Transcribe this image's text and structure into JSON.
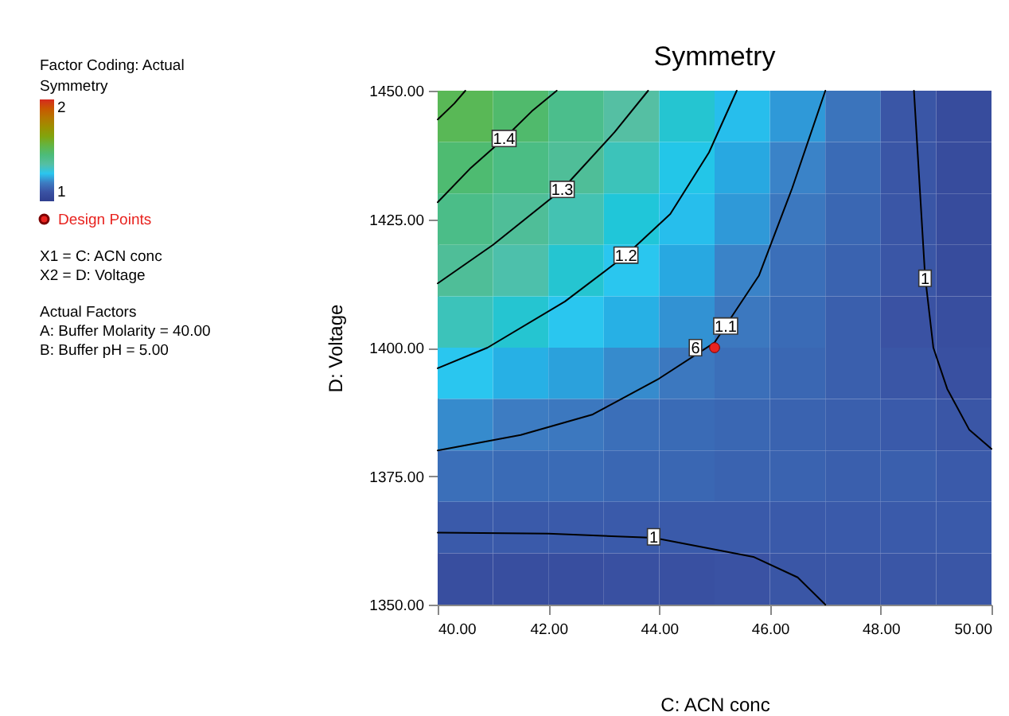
{
  "chart_data": {
    "type": "heatmap",
    "title": "Symmetry",
    "xlabel": "C: ACN conc",
    "ylabel": "D: Voltage",
    "legend_title": "Symmetry",
    "annotations": [
      "Factor Coding: Actual",
      "X1 = C: ACN conc",
      "X2 = D: Voltage",
      "Actual Factors",
      "A: Buffer Molarity = 40.00",
      "B: Buffer pH = 5.00",
      {
        "text": "1.4",
        "x": 41.2,
        "y": 1440.7
      },
      {
        "text": "1.3",
        "x": 42.25,
        "y": 1430.8
      },
      {
        "text": "1.2",
        "x": 43.4,
        "y": 1418
      },
      {
        "text": "1.1",
        "x": 45.2,
        "y": 1404.2
      },
      {
        "text": "6",
        "x": 45,
        "y": 1400
      },
      {
        "text": "1",
        "x": 48.8,
        "y": 1413.5
      },
      {
        "text": "1",
        "x": 43.9,
        "y": 1363.2
      }
    ],
    "xlim": [
      40,
      50
    ],
    "ylim": [
      1350,
      1450
    ],
    "xticks": [
      {
        "value": 40,
        "label": "40.00"
      },
      {
        "value": 42,
        "label": "42.00"
      },
      {
        "value": 44,
        "label": "44.00"
      },
      {
        "value": 46,
        "label": "46.00"
      },
      {
        "value": 48,
        "label": "48.00"
      },
      {
        "value": 50,
        "label": "50.00"
      }
    ],
    "yticks": [
      {
        "value": 1350,
        "label": "1350.00"
      },
      {
        "value": 1375,
        "label": "1375.00"
      },
      {
        "value": 1400,
        "label": "1400.00"
      },
      {
        "value": 1425,
        "label": "1425.00"
      },
      {
        "value": 1450,
        "label": "1450.00"
      }
    ],
    "clim": [
      0.9,
      2
    ],
    "cticks": [
      1,
      2
    ],
    "grid": false,
    "legend": "left",
    "cells": [
      [
        1.47,
        1.43,
        1.36,
        1.3,
        1.24,
        1.19,
        1.14,
        1.08,
        1.01,
        0.97
      ],
      [
        1.42,
        1.38,
        1.33,
        1.27,
        1.21,
        1.16,
        1.11,
        1.06,
        1.01,
        0.97
      ],
      [
        1.37,
        1.33,
        1.28,
        1.23,
        1.19,
        1.14,
        1.09,
        1.05,
        1.01,
        0.97
      ],
      [
        1.33,
        1.29,
        1.24,
        1.2,
        1.16,
        1.11,
        1.07,
        1.04,
        1.01,
        0.97
      ],
      [
        1.27,
        1.24,
        1.2,
        1.17,
        1.13,
        1.09,
        1.06,
        1.03,
        1.0,
        0.98
      ],
      [
        1.2,
        1.17,
        1.15,
        1.12,
        1.09,
        1.07,
        1.05,
        1.03,
        1.01,
        0.99
      ],
      [
        1.12,
        1.1,
        1.09,
        1.07,
        1.06,
        1.05,
        1.04,
        1.03,
        1.02,
        1.01
      ],
      [
        1.07,
        1.06,
        1.06,
        1.05,
        1.05,
        1.04,
        1.04,
        1.03,
        1.03,
        1.02
      ],
      [
        1.02,
        1.02,
        1.02,
        1.02,
        1.02,
        1.02,
        1.02,
        1.02,
        1.02,
        1.02
      ],
      [
        0.98,
        0.98,
        0.98,
        0.99,
        0.99,
        1.0,
        1.01,
        1.01,
        1.01,
        1.01
      ]
    ],
    "series": [
      {
        "type": "line",
        "color": "#000000",
        "x": [
          40,
          40.3,
          40.5
        ],
        "values": [
          1444.4,
          1447.5,
          1450
        ]
      },
      {
        "type": "line",
        "color": "#000000",
        "x": [
          40,
          40.6,
          41.2,
          41.7,
          42.15
        ],
        "values": [
          1428.3,
          1435,
          1440.7,
          1446,
          1450
        ]
      },
      {
        "type": "line",
        "color": "#000000",
        "x": [
          40,
          41,
          42.25,
          43.2,
          43.8
        ],
        "values": [
          1412.5,
          1420,
          1430.8,
          1442,
          1450
        ]
      },
      {
        "type": "line",
        "color": "#000000",
        "x": [
          40,
          40.9,
          42.3,
          43.4,
          44.2,
          44.9,
          45.4
        ],
        "values": [
          1396,
          1400,
          1409,
          1418,
          1426,
          1438,
          1450
        ]
      },
      {
        "type": "line",
        "color": "#000000",
        "x": [
          40,
          41.5,
          42.8,
          44,
          45,
          45.8,
          46.4,
          47
        ],
        "values": [
          1380,
          1383,
          1387,
          1394,
          1401,
          1414,
          1431,
          1450
        ]
      },
      {
        "type": "line",
        "color": "#000000",
        "x": [
          48.6,
          48.8,
          48.95,
          49.2,
          49.6,
          50
        ],
        "values": [
          1450,
          1414,
          1400,
          1392,
          1384,
          1380.3
        ]
      },
      {
        "type": "line",
        "color": "#000000",
        "x": [
          40,
          42,
          43.9,
          45.7,
          46.5,
          47
        ],
        "values": [
          1364,
          1363.8,
          1363,
          1359.3,
          1355.3,
          1350
        ]
      },
      {
        "type": "scatter",
        "name": "Design Points",
        "color": "#e8231f",
        "marker": "circle",
        "x": [
          45
        ],
        "values": [
          1400
        ]
      }
    ]
  }
}
